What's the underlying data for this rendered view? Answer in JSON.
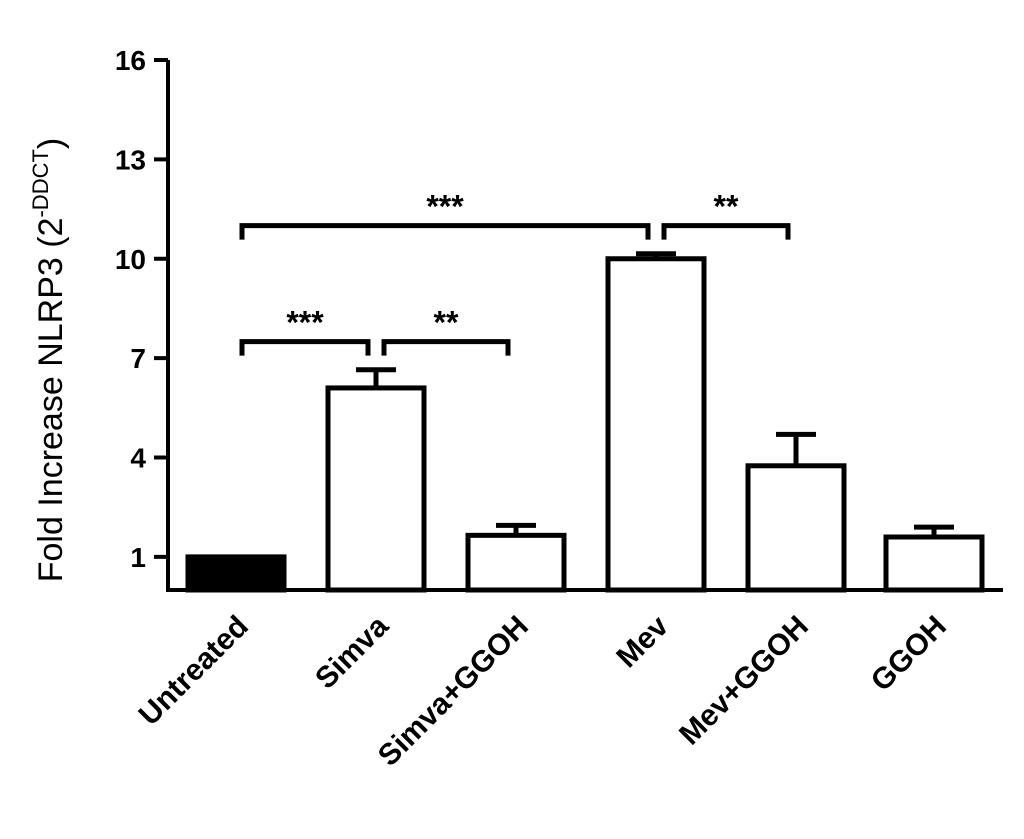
{
  "chart_data": {
    "type": "bar",
    "title": "",
    "xlabel": "",
    "ylabel": "Fold Increase NLRP3 (2",
    "ylabel_superscript": "-DDCT",
    "ylabel_close": ")",
    "ylim": [
      0,
      16
    ],
    "yticks": [
      1,
      4,
      7,
      10,
      13,
      16
    ],
    "categories": [
      "Untreated",
      "Simva",
      "Simva+GGOH",
      "Mev",
      "Mev+GGOH",
      "GGOH"
    ],
    "values": [
      1.0,
      6.1,
      1.65,
      10.0,
      3.75,
      1.6
    ],
    "errors": [
      0.0,
      0.55,
      0.3,
      0.15,
      0.95,
      0.3
    ],
    "bar_fills": [
      "#000000",
      "#ffffff",
      "#ffffff",
      "#ffffff",
      "#ffffff",
      "#ffffff"
    ],
    "significance": [
      {
        "from": 0,
        "to": 3,
        "y": 11.0,
        "label": "***"
      },
      {
        "from": 3,
        "to": 4,
        "y": 11.0,
        "label": "**"
      },
      {
        "from": 0,
        "to": 1,
        "y": 7.5,
        "label": "***"
      },
      {
        "from": 1,
        "to": 2,
        "y": 7.5,
        "label": "**"
      }
    ],
    "grid": false,
    "legend": "none"
  }
}
